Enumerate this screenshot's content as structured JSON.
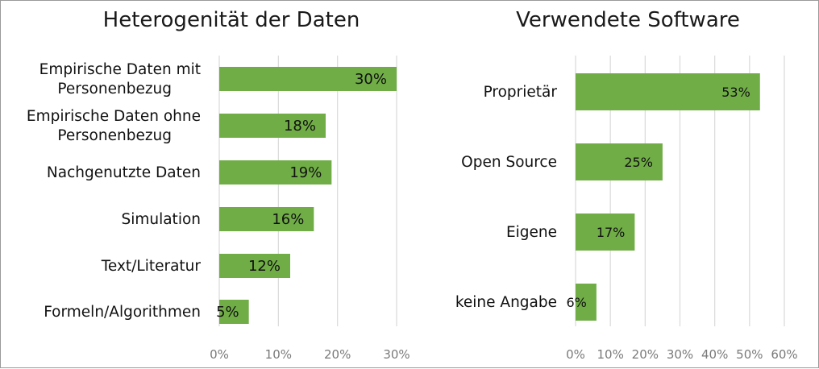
{
  "chart_data": [
    {
      "type": "bar",
      "orientation": "horizontal",
      "title": "Heterogenität der Daten",
      "categories": [
        [
          "Empirische Daten mit",
          "Personenbezug"
        ],
        [
          "Empirische Daten ohne",
          "Personenbezug"
        ],
        [
          "Nachgenutzte Daten"
        ],
        [
          "Simulation"
        ],
        [
          "Text/Literatur"
        ],
        [
          "Formeln/Algorithmen"
        ]
      ],
      "values": [
        30,
        18,
        19,
        16,
        12,
        5
      ],
      "data_labels": [
        "30%",
        "18%",
        "19%",
        "16%",
        "12%",
        "5%"
      ],
      "xlim": [
        0,
        30
      ],
      "ticks": [
        "0%",
        "10%",
        "20%",
        "30%"
      ],
      "grid": true,
      "color": "#70ad47"
    },
    {
      "type": "bar",
      "orientation": "horizontal",
      "title": "Verwendete Software",
      "categories": [
        [
          "Proprietär"
        ],
        [
          "Open Source"
        ],
        [
          "Eigene"
        ],
        [
          "keine Angabe"
        ]
      ],
      "values": [
        53,
        25,
        17,
        6
      ],
      "data_labels": [
        "53%",
        "25%",
        "17%",
        "6%"
      ],
      "xlim": [
        0,
        60
      ],
      "ticks": [
        "0%",
        "10%",
        "20%",
        "30%",
        "40%",
        "50%",
        "60%"
      ],
      "grid": true,
      "color": "#70ad47"
    }
  ]
}
